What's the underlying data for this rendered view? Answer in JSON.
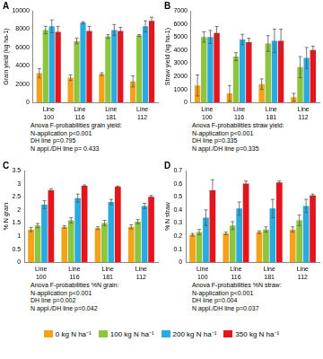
{
  "chart_data": [
    {
      "type": "bar",
      "panel_label": "A",
      "y_label": "Grain yield (kg ha-1)",
      "categories": [
        "Line 100",
        "Line 116",
        "Line 181",
        "Line 112"
      ],
      "series": [
        {
          "name": "0 kg N ha⁻¹",
          "color": "#f5a21b",
          "values": [
            3200,
            2700,
            3100,
            2300
          ],
          "errors": [
            500,
            300,
            150,
            600
          ]
        },
        {
          "name": "100 kg N ha⁻¹",
          "color": "#8cc63f",
          "values": [
            7900,
            6700,
            7200,
            7300
          ],
          "errors": [
            400,
            300,
            200,
            100
          ]
        },
        {
          "name": "200 kg N ha⁻¹",
          "color": "#29abe2",
          "values": [
            8300,
            8700,
            7900,
            8300
          ],
          "errors": [
            700,
            100,
            600,
            600
          ]
        },
        {
          "name": "350 kg N ha⁻¹",
          "color": "#e8141b",
          "values": [
            7700,
            7800,
            7800,
            8900
          ],
          "errors": [
            600,
            500,
            400,
            400
          ]
        }
      ],
      "ylim": [
        0,
        10000
      ],
      "yticks": [
        0,
        2000,
        4000,
        6000,
        8000,
        10000
      ],
      "grid": false,
      "legend": "bottom",
      "annotations": [
        "Anova F-probabilities grain yield:",
        "N-application p<0.001",
        "DH line p=0.795",
        "N appl./DH line p= 0.433"
      ]
    },
    {
      "type": "bar",
      "panel_label": "B",
      "y_label": "Straw yield (kg ha-1)",
      "categories": [
        "Line 100",
        "Line 116",
        "Line 181",
        "Line 112"
      ],
      "series": [
        {
          "name": "0 kg N ha⁻¹",
          "color": "#f5a21b",
          "values": [
            1300,
            700,
            1400,
            400
          ],
          "errors": [
            800,
            600,
            400,
            300
          ]
        },
        {
          "name": "100 kg N ha⁻¹",
          "color": "#8cc63f",
          "values": [
            5000,
            3500,
            4500,
            2700
          ],
          "errors": [
            400,
            300,
            600,
            800
          ]
        },
        {
          "name": "200 kg N ha⁻¹",
          "color": "#29abe2",
          "values": [
            5000,
            4800,
            4700,
            3400
          ],
          "errors": [
            500,
            400,
            900,
            800
          ]
        },
        {
          "name": "350 kg N ha⁻¹",
          "color": "#e8141b",
          "values": [
            5300,
            4600,
            4700,
            4000
          ],
          "errors": [
            500,
            300,
            900,
            300
          ]
        }
      ],
      "ylim": [
        0,
        7000
      ],
      "yticks": [
        0,
        1000,
        2000,
        3000,
        4000,
        5000,
        6000,
        7000
      ],
      "grid": false,
      "annotations": [
        "Anova F-probabilities straw yield:",
        "N-application p<0.001",
        "DH line p=0.335",
        "N appl./DH line p=0.335"
      ]
    },
    {
      "type": "bar",
      "panel_label": "C",
      "y_label": "% N grain",
      "categories": [
        "Line 100",
        "Line 116",
        "Line 181",
        "Line 112"
      ],
      "series": [
        {
          "name": "0 kg N ha⁻¹",
          "color": "#f5a21b",
          "values": [
            1.25,
            1.35,
            1.3,
            1.35
          ],
          "errors": [
            0.08,
            0.05,
            0.05,
            0.08
          ]
        },
        {
          "name": "100 kg N ha⁻¹",
          "color": "#8cc63f",
          "values": [
            1.4,
            1.6,
            1.5,
            1.55
          ],
          "errors": [
            0.08,
            0.1,
            0.1,
            0.08
          ]
        },
        {
          "name": "200 kg N ha⁻¹",
          "color": "#29abe2",
          "values": [
            2.2,
            2.45,
            2.3,
            2.15
          ],
          "errors": [
            0.15,
            0.15,
            0.1,
            0.1
          ]
        },
        {
          "name": "350 kg N ha⁻¹",
          "color": "#e8141b",
          "values": [
            2.75,
            2.92,
            2.88,
            2.5
          ],
          "errors": [
            0.05,
            0.03,
            0.03,
            0.05
          ]
        }
      ],
      "ylim": [
        0,
        3.5
      ],
      "yticks": [
        0,
        0.5,
        1,
        1.5,
        2,
        2.5,
        3,
        3.5
      ],
      "grid": false,
      "annotations": [
        "Anova F-probabilities %N grain:",
        "N-application p<0.001",
        "DH line p=0.002",
        "N appl./DH line p=0.042"
      ]
    },
    {
      "type": "bar",
      "panel_label": "D",
      "y_label": "% N straw",
      "categories": [
        "Line 100",
        "Line 116",
        "Line 181",
        "Line 112"
      ],
      "series": [
        {
          "name": "0 kg N ha⁻¹",
          "color": "#f5a21b",
          "values": [
            0.21,
            0.22,
            0.23,
            0.25
          ],
          "errors": [
            0.01,
            0.01,
            0.01,
            0.02
          ]
        },
        {
          "name": "100 kg N ha⁻¹",
          "color": "#8cc63f",
          "values": [
            0.23,
            0.28,
            0.25,
            0.32
          ],
          "errors": [
            0.02,
            0.03,
            0.02,
            0.04
          ]
        },
        {
          "name": "200 kg N ha⁻¹",
          "color": "#29abe2",
          "values": [
            0.34,
            0.41,
            0.41,
            0.43
          ],
          "errors": [
            0.06,
            0.05,
            0.07,
            0.05
          ]
        },
        {
          "name": "350 kg N ha⁻¹",
          "color": "#e8141b",
          "values": [
            0.55,
            0.6,
            0.61,
            0.51
          ],
          "errors": [
            0.08,
            0.02,
            0.01,
            0.01
          ]
        }
      ],
      "ylim": [
        0,
        0.7
      ],
      "yticks": [
        0,
        0.1,
        0.2,
        0.3,
        0.4,
        0.5,
        0.6,
        0.7
      ],
      "grid": false,
      "annotations": [
        "Anova F-probabilities %N straw:",
        "N-application p<0.001",
        "DH line p=0.004",
        "N appl./DH line p=0.037"
      ]
    }
  ]
}
